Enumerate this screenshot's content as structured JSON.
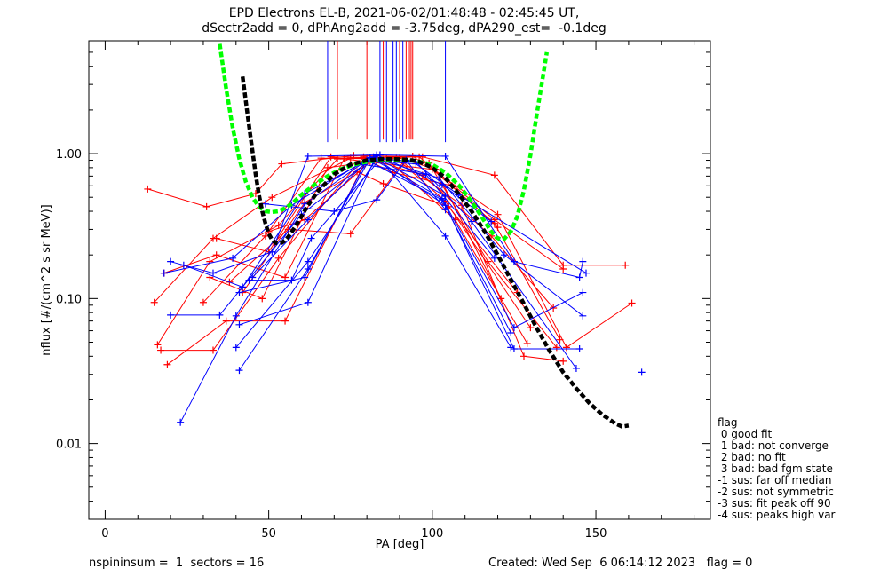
{
  "title": {
    "line1": "EPD Electrons EL-B, 2021-06-02/01:48:48 - 02:45:45 UT,",
    "line2": "dSectr2add = 0, dPhAng2add = -3.75deg, dPA290_est=  -0.1deg"
  },
  "footer": {
    "left": "nspininsum =  1  sectors = 16",
    "right": "Created: Wed Sep  6 06:14:12 2023   flag = 0"
  },
  "legend": {
    "title": "flag",
    "items": [
      " 0 good fit",
      " 1 bad: not converge",
      " 2 bad: no fit",
      " 3 bad: bad fgm state",
      "-1 sus: far off median",
      "-2 sus: not symmetric",
      "-3 sus: fit peak off 90",
      "-4 sus: peaks high var"
    ]
  },
  "colors": {
    "red": "#ff0000",
    "blue": "#0000ff",
    "black": "#000000",
    "green": "#00ff00"
  },
  "chart_data": {
    "type": "line",
    "title": "EPD Electrons EL-B, 2021-06-02/01:48:48 - 02:45:45 UT,",
    "subtitle": "dSectr2add = 0, dPhAng2add = -3.75deg, dPA290_est=  -0.1deg",
    "xlabel": "PA [deg]",
    "ylabel": "nflux [#/(cm^2 s sr MeV)]",
    "xlim": [
      -5,
      185
    ],
    "ylim": [
      0.003,
      6.0
    ],
    "ylog": true,
    "xticks": [
      0,
      50,
      100,
      150
    ],
    "yticks": [
      {
        "value": 1.0,
        "label": "1.00"
      },
      {
        "value": 0.1,
        "label": "0.10"
      },
      {
        "value": 0.01,
        "label": "0.01"
      }
    ],
    "red_series": [
      [
        [
          13,
          0.57
        ],
        [
          31,
          0.43
        ],
        [
          46,
          0.53
        ],
        [
          54,
          0.85
        ],
        [
          76,
          0.97
        ],
        [
          97,
          0.95
        ],
        [
          119,
          0.71
        ],
        [
          140,
          0.17
        ],
        [
          159,
          0.17
        ]
      ],
      [
        [
          15,
          0.094
        ],
        [
          33,
          0.26
        ],
        [
          51,
          0.5
        ],
        [
          75,
          0.93
        ],
        [
          96,
          0.95
        ],
        [
          119,
          0.35
        ],
        [
          140,
          0.16
        ]
      ],
      [
        [
          16,
          0.048
        ],
        [
          32,
          0.18
        ],
        [
          53,
          0.32
        ],
        [
          71,
          0.92
        ],
        [
          94,
          0.96
        ],
        [
          120,
          0.38
        ],
        [
          141,
          0.046
        ],
        [
          161,
          0.093
        ]
      ],
      [
        [
          17,
          0.044
        ],
        [
          33,
          0.044
        ],
        [
          53,
          0.19
        ],
        [
          79,
          0.95
        ],
        [
          99,
          0.86
        ],
        [
          117,
          0.18
        ],
        [
          138,
          0.046
        ]
      ],
      [
        [
          18,
          0.15
        ],
        [
          34,
          0.2
        ],
        [
          55,
          0.14
        ],
        [
          73,
          0.92
        ],
        [
          100,
          0.78
        ],
        [
          119,
          0.33
        ],
        [
          139,
          0.052
        ]
      ],
      [
        [
          19,
          0.035
        ],
        [
          37,
          0.07
        ],
        [
          55,
          0.07
        ],
        [
          80,
          0.93
        ],
        [
          97,
          0.71
        ],
        [
          118,
          0.27
        ],
        [
          137,
          0.086
        ]
      ],
      [
        [
          30,
          0.094
        ],
        [
          49,
          0.27
        ],
        [
          66,
          0.93
        ],
        [
          86,
          0.92
        ],
        [
          107,
          0.35
        ],
        [
          129,
          0.049
        ]
      ],
      [
        [
          32,
          0.14
        ],
        [
          48,
          0.1
        ],
        [
          68,
          0.8
        ],
        [
          89,
          0.93
        ],
        [
          104,
          0.47
        ],
        [
          130,
          0.063
        ]
      ],
      [
        [
          34,
          0.26
        ],
        [
          50,
          0.21
        ],
        [
          69,
          0.95
        ],
        [
          90,
          0.93
        ],
        [
          101,
          0.78
        ],
        [
          121,
          0.1
        ]
      ],
      [
        [
          38,
          0.13
        ],
        [
          56,
          0.3
        ],
        [
          75,
          0.28
        ],
        [
          91,
          0.87
        ],
        [
          109,
          0.44
        ],
        [
          128,
          0.04
        ],
        [
          140,
          0.037
        ]
      ],
      [
        [
          42,
          0.11
        ],
        [
          61,
          0.46
        ],
        [
          77,
          0.75
        ],
        [
          85,
          0.62
        ],
        [
          105,
          0.43
        ],
        [
          126,
          0.11
        ]
      ],
      [
        [
          50,
          0.29
        ],
        [
          61,
          0.35
        ],
        [
          81,
          0.88
        ],
        [
          88,
          0.74
        ],
        [
          106,
          0.6
        ],
        [
          120,
          0.31
        ]
      ]
    ],
    "blue_series": [
      [
        [
          20,
          0.18
        ],
        [
          33,
          0.15
        ],
        [
          51,
          0.21
        ],
        [
          62,
          0.96
        ],
        [
          84,
          0.98
        ],
        [
          104,
          0.96
        ],
        [
          125,
          0.18
        ],
        [
          145,
          0.14
        ],
        [
          146,
          0.18
        ]
      ],
      [
        [
          18,
          0.15
        ],
        [
          39,
          0.19
        ],
        [
          57,
          0.44
        ],
        [
          81,
          0.94
        ],
        [
          103,
          0.49
        ],
        [
          125,
          0.063
        ],
        [
          146,
          0.11
        ]
      ],
      [
        [
          20,
          0.077
        ],
        [
          35,
          0.077
        ],
        [
          60,
          0.38
        ],
        [
          82,
          0.95
        ],
        [
          104,
          0.44
        ],
        [
          125,
          0.045
        ],
        [
          145,
          0.045
        ]
      ],
      [
        [
          23,
          0.014
        ],
        [
          40,
          0.076
        ],
        [
          61,
          0.45
        ],
        [
          80,
          0.9
        ],
        [
          103,
          0.48
        ],
        [
          124,
          0.058
        ]
      ],
      [
        [
          24,
          0.17
        ],
        [
          42,
          0.12
        ],
        [
          61,
          0.53
        ],
        [
          83,
          0.97
        ],
        [
          104,
          0.27
        ],
        [
          124,
          0.046
        ]
      ],
      [
        [
          40,
          0.046
        ],
        [
          62,
          0.18
        ],
        [
          83,
          0.92
        ],
        [
          102,
          0.68
        ],
        [
          122,
          0.2
        ],
        [
          146,
          0.076
        ]
      ],
      [
        [
          41,
          0.11
        ],
        [
          61,
          0.14
        ],
        [
          80,
          0.9
        ],
        [
          95,
          0.85
        ],
        [
          108,
          0.52
        ],
        [
          147,
          0.15
        ]
      ],
      [
        [
          41,
          0.032
        ],
        [
          62,
          0.16
        ],
        [
          81,
          0.93
        ],
        [
          95,
          0.88
        ],
        [
          112,
          0.34
        ],
        [
          144,
          0.033
        ]
      ],
      [
        [
          41,
          0.066
        ],
        [
          62,
          0.094
        ],
        [
          83,
          0.98
        ],
        [
          103,
          0.61
        ],
        [
          118,
          0.34
        ]
      ],
      [
        [
          44,
          0.134
        ],
        [
          57,
          0.134
        ],
        [
          63,
          0.26
        ],
        [
          84,
          0.91
        ],
        [
          104,
          0.51
        ]
      ],
      [
        [
          45,
          0.14
        ],
        [
          62,
          0.35
        ],
        [
          79,
          0.84
        ],
        [
          98,
          0.72
        ],
        [
          119,
          0.19
        ]
      ],
      [
        [
          49,
          0.45
        ],
        [
          70,
          0.4
        ],
        [
          83,
          0.48
        ],
        [
          92,
          0.9
        ],
        [
          104,
          0.41
        ]
      ],
      [
        [
          164,
          0.031
        ]
      ]
    ],
    "black_fit": [
      [
        42,
        3.4
      ],
      [
        43,
        2.3
      ],
      [
        44,
        1.55
      ],
      [
        45,
        1.05
      ],
      [
        46,
        0.72
      ],
      [
        47,
        0.52
      ],
      [
        48,
        0.4
      ],
      [
        49,
        0.33
      ],
      [
        50,
        0.28
      ],
      [
        51,
        0.255
      ],
      [
        52,
        0.243
      ],
      [
        53,
        0.24
      ],
      [
        54,
        0.243
      ],
      [
        55,
        0.252
      ],
      [
        56,
        0.267
      ],
      [
        58,
        0.31
      ],
      [
        60,
        0.37
      ],
      [
        62,
        0.44
      ],
      [
        65,
        0.55
      ],
      [
        70,
        0.72
      ],
      [
        75,
        0.84
      ],
      [
        80,
        0.9
      ],
      [
        85,
        0.92
      ],
      [
        90,
        0.915
      ],
      [
        93,
        0.905
      ],
      [
        96,
        0.88
      ],
      [
        100,
        0.8
      ],
      [
        104,
        0.68
      ],
      [
        108,
        0.53
      ],
      [
        112,
        0.4
      ],
      [
        116,
        0.29
      ],
      [
        120,
        0.2
      ],
      [
        124,
        0.135
      ],
      [
        128,
        0.092
      ],
      [
        132,
        0.062
      ],
      [
        136,
        0.043
      ],
      [
        140,
        0.031
      ],
      [
        144,
        0.024
      ],
      [
        148,
        0.019
      ],
      [
        152,
        0.0158
      ],
      [
        156,
        0.0137
      ],
      [
        158,
        0.0131
      ],
      [
        160,
        0.0133
      ]
    ],
    "green_fit": [
      [
        35,
        5.7
      ],
      [
        37,
        2.8
      ],
      [
        39,
        1.5
      ],
      [
        41,
        0.92
      ],
      [
        43,
        0.64
      ],
      [
        45,
        0.5
      ],
      [
        47,
        0.43
      ],
      [
        49,
        0.4
      ],
      [
        51,
        0.395
      ],
      [
        53,
        0.4
      ],
      [
        55,
        0.42
      ],
      [
        57,
        0.45
      ],
      [
        60,
        0.52
      ],
      [
        64,
        0.61
      ],
      [
        68,
        0.7
      ],
      [
        72,
        0.78
      ],
      [
        76,
        0.84
      ],
      [
        80,
        0.88
      ],
      [
        85,
        0.91
      ],
      [
        90,
        0.91
      ],
      [
        95,
        0.89
      ],
      [
        100,
        0.84
      ],
      [
        104,
        0.74
      ],
      [
        108,
        0.61
      ],
      [
        111,
        0.5
      ],
      [
        114,
        0.4
      ],
      [
        116,
        0.34
      ],
      [
        118,
        0.29
      ],
      [
        119.5,
        0.265
      ],
      [
        121,
        0.255
      ],
      [
        122,
        0.258
      ],
      [
        124,
        0.29
      ],
      [
        126,
        0.37
      ],
      [
        128,
        0.56
      ],
      [
        130,
        0.98
      ],
      [
        132,
        1.9
      ],
      [
        134,
        3.6
      ],
      [
        135,
        5.0
      ]
    ],
    "vlines": [
      {
        "x": 68,
        "color": "blue",
        "ymin": 1.2
      },
      {
        "x": 71,
        "color": "red",
        "ymin": 1.25
      },
      {
        "x": 80,
        "color": "red",
        "ymin": 1.25
      },
      {
        "x": 84,
        "color": "blue",
        "ymin": 1.2
      },
      {
        "x": 85,
        "color": "red",
        "ymin": 1.25
      },
      {
        "x": 86,
        "color": "blue",
        "ymin": 1.2
      },
      {
        "x": 88,
        "color": "blue",
        "ymin": 1.2
      },
      {
        "x": 89,
        "color": "blue",
        "ymin": 1.2
      },
      {
        "x": 90,
        "color": "red",
        "ymin": 1.25
      },
      {
        "x": 91,
        "color": "blue",
        "ymin": 1.2
      },
      {
        "x": 92,
        "color": "red",
        "ymin": 1.25
      },
      {
        "x": 93,
        "color": "red",
        "ymin": 1.25
      },
      {
        "x": 93.5,
        "color": "red",
        "ymin": 1.25
      },
      {
        "x": 94,
        "color": "red",
        "ymin": 1.25
      },
      {
        "x": 104,
        "color": "blue",
        "ymin": 1.2
      }
    ]
  }
}
